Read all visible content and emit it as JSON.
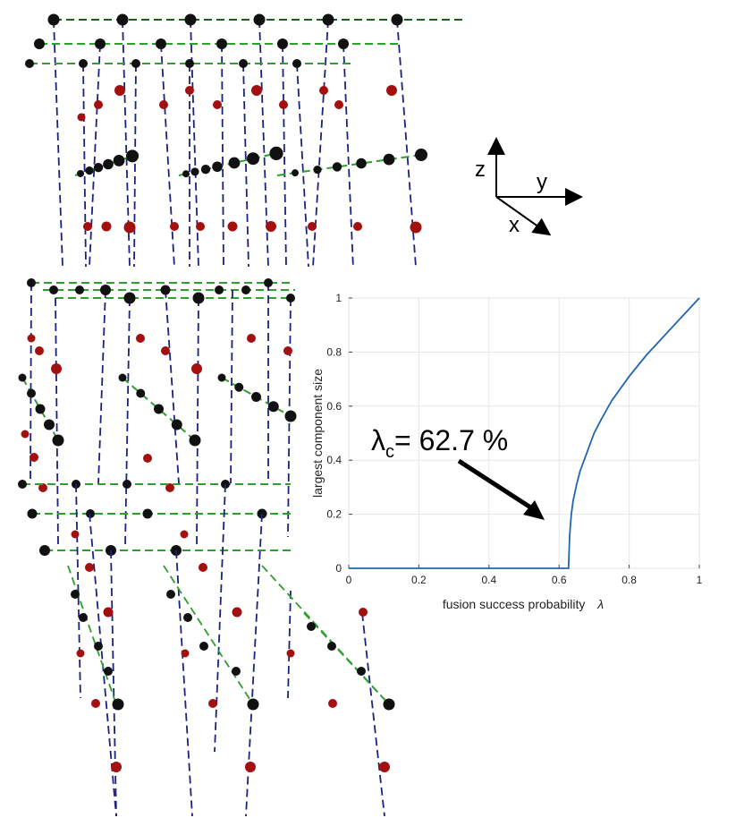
{
  "axes_triad": {
    "x": "x",
    "y": "y",
    "z": "z"
  },
  "colors": {
    "vertical_bond": "#1a237e",
    "layer_bond": "#2e9e2e",
    "dark_bond": "#1b5e20",
    "qubit_black": "#111111",
    "qubit_red": "#a31010",
    "curve": "#1f66b0"
  },
  "chart_data": {
    "type": "line",
    "title": "",
    "xlabel": "fusion success probability",
    "xlabel_symbol": "λ",
    "ylabel": "largest component size",
    "xlim": [
      0,
      1
    ],
    "ylim": [
      0,
      1
    ],
    "xticks": [
      "0",
      "0.2",
      "0.4",
      "0.6",
      "0.8",
      "1"
    ],
    "yticks": [
      "0",
      "0.2",
      "0.4",
      "0.6",
      "0.8",
      "1"
    ],
    "grid": true,
    "annotation": {
      "symbol": "λ",
      "subscript": "c",
      "text": "= 62.7 %"
    },
    "threshold": 0.627,
    "series": [
      {
        "x": [
          0,
          0.1,
          0.2,
          0.3,
          0.4,
          0.5,
          0.6,
          0.627,
          0.63,
          0.635,
          0.64,
          0.65,
          0.66,
          0.68,
          0.7,
          0.72,
          0.75,
          0.8,
          0.85,
          0.9,
          0.95,
          1.0
        ],
        "y": [
          0,
          0,
          0,
          0,
          0,
          0,
          0,
          0,
          0.12,
          0.2,
          0.25,
          0.31,
          0.36,
          0.43,
          0.5,
          0.55,
          0.62,
          0.71,
          0.79,
          0.86,
          0.93,
          1.0
        ]
      }
    ]
  }
}
